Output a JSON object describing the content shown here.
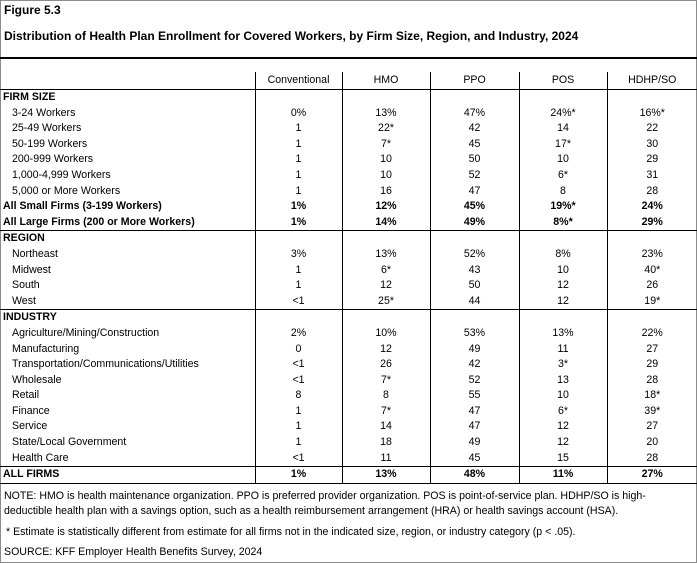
{
  "figure_label": "Figure 5.3",
  "title": "Distribution of Health Plan Enrollment for Covered Workers, by Firm Size, Region, and Industry, 2024",
  "columns": [
    "Conventional",
    "HMO",
    "PPO",
    "POS",
    "HDHP/SO"
  ],
  "rows": [
    {
      "label": "FIRM SIZE",
      "type": "section",
      "values": []
    },
    {
      "label": "3-24 Workers",
      "type": "item",
      "values": [
        "0%",
        "13%",
        "47%",
        "24%*",
        "16%*"
      ]
    },
    {
      "label": "25-49 Workers",
      "type": "item",
      "values": [
        "1",
        "22*",
        "42",
        "14",
        "22"
      ]
    },
    {
      "label": "50-199 Workers",
      "type": "item",
      "values": [
        "1",
        "7*",
        "45",
        "17*",
        "30"
      ]
    },
    {
      "label": "200-999 Workers",
      "type": "item",
      "values": [
        "1",
        "10",
        "50",
        "10",
        "29"
      ]
    },
    {
      "label": "1,000-4,999 Workers",
      "type": "item",
      "values": [
        "1",
        "10",
        "52",
        "6*",
        "31"
      ]
    },
    {
      "label": "5,000 or More Workers",
      "type": "item",
      "values": [
        "1",
        "16",
        "47",
        "8",
        "28"
      ]
    },
    {
      "label": "All Small Firms (3-199 Workers)",
      "type": "total",
      "values": [
        "1%",
        "12%",
        "45%",
        "19%*",
        "24%"
      ]
    },
    {
      "label": "All Large Firms (200 or More Workers)",
      "type": "total",
      "values": [
        "1%",
        "14%",
        "49%",
        "8%*",
        "29%"
      ]
    },
    {
      "label": "REGION",
      "type": "section",
      "values": []
    },
    {
      "label": "Northeast",
      "type": "item",
      "values": [
        "3%",
        "13%",
        "52%",
        "8%",
        "23%"
      ]
    },
    {
      "label": "Midwest",
      "type": "item",
      "values": [
        "1",
        "6*",
        "43",
        "10",
        "40*"
      ]
    },
    {
      "label": "South",
      "type": "item",
      "values": [
        "1",
        "12",
        "50",
        "12",
        "26"
      ]
    },
    {
      "label": "West",
      "type": "item",
      "values": [
        "<1",
        "25*",
        "44",
        "12",
        "19*"
      ]
    },
    {
      "label": "INDUSTRY",
      "type": "section",
      "values": []
    },
    {
      "label": "Agriculture/Mining/Construction",
      "type": "item",
      "values": [
        "2%",
        "10%",
        "53%",
        "13%",
        "22%"
      ]
    },
    {
      "label": "Manufacturing",
      "type": "item",
      "values": [
        "0",
        "12",
        "49",
        "11",
        "27"
      ]
    },
    {
      "label": "Transportation/Communications/Utilities",
      "type": "item",
      "values": [
        "<1",
        "26",
        "42",
        "3*",
        "29"
      ]
    },
    {
      "label": "Wholesale",
      "type": "item",
      "values": [
        "<1",
        "7*",
        "52",
        "13",
        "28"
      ]
    },
    {
      "label": "Retail",
      "type": "item",
      "values": [
        "8",
        "8",
        "55",
        "10",
        "18*"
      ]
    },
    {
      "label": "Finance",
      "type": "item",
      "values": [
        "1",
        "7*",
        "47",
        "6*",
        "39*"
      ]
    },
    {
      "label": "Service",
      "type": "item",
      "values": [
        "1",
        "14",
        "47",
        "12",
        "27"
      ]
    },
    {
      "label": "State/Local Government",
      "type": "item",
      "values": [
        "1",
        "18",
        "49",
        "12",
        "20"
      ]
    },
    {
      "label": "Health Care",
      "type": "item",
      "values": [
        "<1",
        "11",
        "45",
        "15",
        "28"
      ]
    },
    {
      "label": "ALL FIRMS",
      "type": "grand",
      "values": [
        "1%",
        "13%",
        "48%",
        "11%",
        "27%"
      ]
    }
  ],
  "notes": {
    "note": "NOTE: HMO is health maintenance organization. PPO is preferred provider organization. POS is point-of-service plan. HDHP/SO is high-deductible health plan with a savings option, such as a health reimbursement arrangement (HRA) or health savings account (HSA).",
    "asterisk": "* Estimate is statistically different from estimate for all firms not in the indicated size, region, or industry category (p < .05).",
    "source": "SOURCE: KFF Employer Health Benefits Survey, 2024"
  }
}
